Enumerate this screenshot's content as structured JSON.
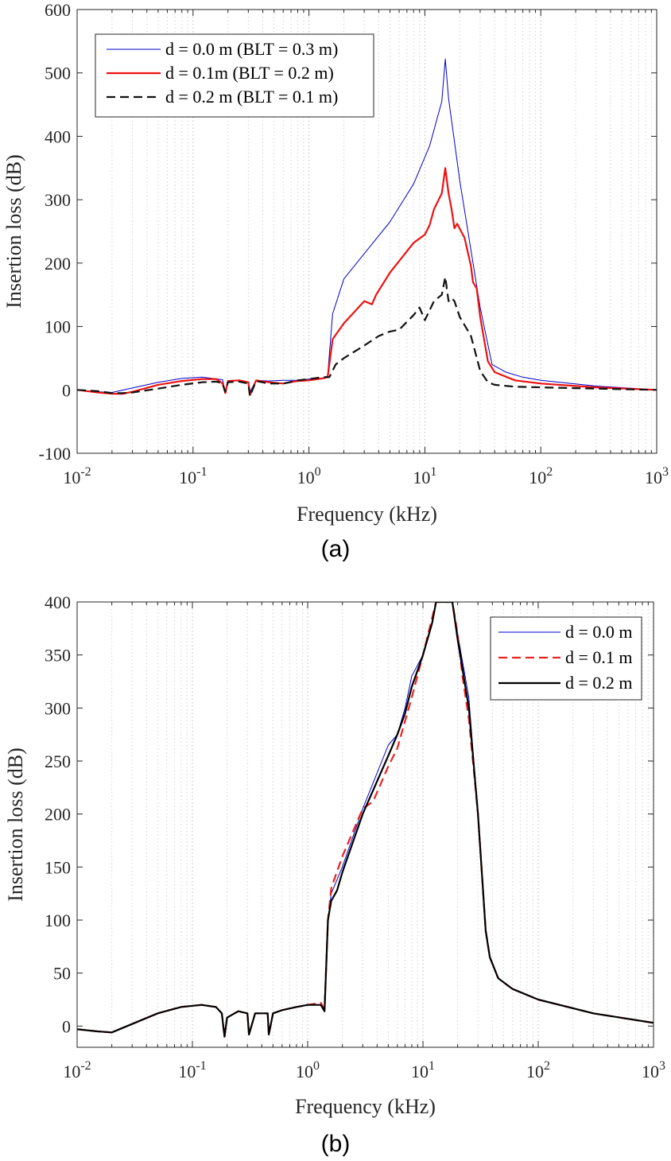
{
  "chart_data": [
    {
      "type": "line",
      "panel_caption": "(a)",
      "xlabel": "Frequency (kHz)",
      "ylabel": "Insertion loss (dB)",
      "xscale": "log",
      "xlim": [
        0.01,
        1000
      ],
      "ylim": [
        -100,
        600
      ],
      "xticks": [
        0.01,
        0.1,
        1,
        10,
        100,
        1000
      ],
      "xtick_labels": [
        [
          "10",
          "-2"
        ],
        [
          "10",
          "-1"
        ],
        [
          "10",
          "0"
        ],
        [
          "10",
          "1"
        ],
        [
          "10",
          "2"
        ],
        [
          "10",
          "3"
        ]
      ],
      "yticks": [
        -100,
        0,
        100,
        200,
        300,
        400,
        500,
        600
      ],
      "ytick_labels": [
        "-100",
        "0",
        "100",
        "200",
        "300",
        "400",
        "500",
        "600"
      ],
      "grid": "minor-dotted-x",
      "legend_position": "top-left",
      "series": [
        {
          "name": "d = 0.0 m (BLT = 0.3 m)",
          "color": "#0000cc",
          "style": "solid",
          "width": 1,
          "x": [
            0.01,
            0.015,
            0.02,
            0.03,
            0.05,
            0.08,
            0.12,
            0.18,
            0.19,
            0.2,
            0.25,
            0.3,
            0.31,
            0.35,
            0.45,
            0.6,
            0.8,
            1.0,
            1.3,
            1.45,
            1.6,
            2,
            3,
            5,
            8,
            11,
            14,
            15,
            16,
            20,
            30,
            38,
            50,
            70,
            100,
            300,
            1000
          ],
          "y": [
            0,
            -3,
            -4,
            3,
            12,
            18,
            20,
            16,
            -4,
            14,
            15,
            12,
            -3,
            15,
            14,
            15,
            15,
            17,
            18,
            22,
            120,
            175,
            215,
            265,
            325,
            385,
            455,
            522,
            460,
            330,
            130,
            40,
            28,
            20,
            15,
            6,
            0
          ]
        },
        {
          "name": "d = 0.1m (BLT = 0.2 m)",
          "color": "#ee1111",
          "style": "solid",
          "width": 2.2,
          "x": [
            0.01,
            0.015,
            0.02,
            0.025,
            0.03,
            0.05,
            0.08,
            0.12,
            0.16,
            0.18,
            0.19,
            0.2,
            0.25,
            0.3,
            0.31,
            0.35,
            0.45,
            0.6,
            0.8,
            1.0,
            1.3,
            1.45,
            1.6,
            2,
            3,
            3.5,
            3.8,
            5,
            8,
            10,
            11,
            12,
            14,
            15,
            16,
            17,
            18,
            19,
            22,
            25,
            26,
            28,
            30,
            35,
            40,
            60,
            100,
            300,
            1000
          ],
          "y": [
            0,
            -4,
            -6,
            -6,
            -3,
            8,
            14,
            17,
            17,
            10,
            -5,
            14,
            15,
            12,
            -8,
            15,
            12,
            10,
            14,
            15,
            18,
            20,
            80,
            105,
            140,
            135,
            150,
            185,
            232,
            245,
            260,
            285,
            310,
            350,
            310,
            285,
            255,
            262,
            240,
            195,
            170,
            160,
            115,
            45,
            28,
            15,
            10,
            4,
            0
          ]
        },
        {
          "name": "d = 0.2 m (BLT = 0.1 m)",
          "color": "#111111",
          "style": "dashed",
          "width": 2.2,
          "x": [
            0.01,
            0.015,
            0.02,
            0.025,
            0.03,
            0.05,
            0.08,
            0.12,
            0.16,
            0.18,
            0.19,
            0.2,
            0.25,
            0.3,
            0.31,
            0.35,
            0.45,
            0.6,
            0.8,
            1.0,
            1.3,
            1.5,
            1.7,
            2,
            3,
            4,
            5,
            6,
            8,
            9,
            10,
            12,
            14,
            15,
            16,
            17,
            18,
            20,
            25,
            30,
            35,
            40,
            60,
            100,
            300,
            1000
          ],
          "y": [
            0,
            -2,
            -5,
            -5,
            -4,
            2,
            8,
            12,
            13,
            10,
            -3,
            12,
            13,
            10,
            -10,
            14,
            10,
            10,
            15,
            17,
            20,
            20,
            40,
            50,
            70,
            85,
            92,
            95,
            118,
            130,
            110,
            140,
            150,
            178,
            140,
            145,
            140,
            115,
            85,
            30,
            12,
            8,
            5,
            4,
            2,
            0
          ]
        }
      ]
    },
    {
      "type": "line",
      "panel_caption": "(b)",
      "xlabel": "Frequency (kHz)",
      "ylabel": "Insertion loss (dB)",
      "xscale": "log",
      "xlim": [
        0.01,
        1000
      ],
      "ylim": [
        -20,
        400
      ],
      "xticks": [
        0.01,
        0.1,
        1,
        10,
        100,
        1000
      ],
      "xtick_labels": [
        [
          "10",
          "-2"
        ],
        [
          "10",
          "-1"
        ],
        [
          "10",
          "0"
        ],
        [
          "10",
          "1"
        ],
        [
          "10",
          "2"
        ],
        [
          "10",
          "3"
        ]
      ],
      "yticks": [
        0,
        50,
        100,
        150,
        200,
        250,
        300,
        350,
        400
      ],
      "ytick_labels": [
        "0",
        "50",
        "100",
        "150",
        "200",
        "250",
        "300",
        "350",
        "400"
      ],
      "grid": "minor-dotted-x",
      "legend_position": "top-right",
      "series": [
        {
          "name": "d = 0.0 m",
          "color": "#0000cc",
          "style": "solid",
          "width": 1,
          "x": [
            0.01,
            0.015,
            0.02,
            0.03,
            0.05,
            0.08,
            0.12,
            0.16,
            0.18,
            0.19,
            0.2,
            0.25,
            0.3,
            0.31,
            0.35,
            0.45,
            0.46,
            0.5,
            0.6,
            0.8,
            1.0,
            1.3,
            1.4,
            1.5,
            1.6,
            2,
            3,
            5,
            6,
            7,
            8,
            10,
            12,
            13,
            18,
            20,
            25,
            30,
            35,
            38,
            45,
            60,
            100,
            300,
            1000
          ],
          "y": [
            -3,
            -5,
            -6,
            2,
            12,
            18,
            20,
            18,
            12,
            -10,
            8,
            14,
            12,
            -8,
            12,
            12,
            -8,
            12,
            15,
            18,
            20,
            20,
            14,
            100,
            125,
            150,
            205,
            265,
            275,
            300,
            330,
            350,
            380,
            400,
            400,
            370,
            310,
            200,
            90,
            65,
            45,
            35,
            25,
            12,
            3
          ]
        },
        {
          "name": "d = 0.1 m",
          "color": "#ee2222",
          "style": "dashed",
          "width": 2.2,
          "x": [
            0.01,
            0.015,
            0.02,
            0.03,
            0.05,
            0.08,
            0.12,
            0.16,
            0.18,
            0.19,
            0.2,
            0.25,
            0.3,
            0.31,
            0.35,
            0.45,
            0.46,
            0.5,
            0.6,
            0.8,
            1.0,
            1.3,
            1.4,
            1.5,
            1.6,
            2,
            3,
            3.5,
            3.8,
            5,
            6,
            8,
            10,
            12,
            13,
            18,
            20,
            22,
            25,
            30,
            35,
            38,
            45,
            60,
            100,
            300,
            1000
          ],
          "y": [
            -3,
            -5,
            -6,
            2,
            12,
            18,
            20,
            18,
            12,
            -10,
            8,
            14,
            12,
            -8,
            12,
            12,
            -8,
            12,
            15,
            18,
            20,
            22,
            16,
            100,
            130,
            160,
            205,
            210,
            215,
            245,
            262,
            310,
            350,
            385,
            400,
            400,
            370,
            330,
            290,
            200,
            90,
            65,
            45,
            35,
            25,
            12,
            3
          ]
        },
        {
          "name": "d = 0.2 m",
          "color": "#000000",
          "style": "solid",
          "width": 2.2,
          "x": [
            0.01,
            0.015,
            0.02,
            0.03,
            0.05,
            0.08,
            0.12,
            0.16,
            0.18,
            0.19,
            0.2,
            0.25,
            0.3,
            0.31,
            0.35,
            0.45,
            0.46,
            0.5,
            0.6,
            0.8,
            1.0,
            1.3,
            1.4,
            1.5,
            1.6,
            1.8,
            2,
            3,
            5,
            6,
            7,
            8,
            10,
            12,
            13,
            18,
            20,
            25,
            30,
            35,
            38,
            45,
            60,
            100,
            300,
            1000
          ],
          "y": [
            -3,
            -5,
            -6,
            2,
            12,
            18,
            20,
            18,
            12,
            -10,
            8,
            14,
            12,
            -8,
            12,
            12,
            -8,
            12,
            15,
            18,
            20,
            20,
            14,
            100,
            118,
            128,
            145,
            200,
            255,
            275,
            295,
            320,
            350,
            380,
            400,
            400,
            365,
            300,
            200,
            90,
            65,
            45,
            35,
            25,
            12,
            3
          ]
        }
      ]
    }
  ]
}
